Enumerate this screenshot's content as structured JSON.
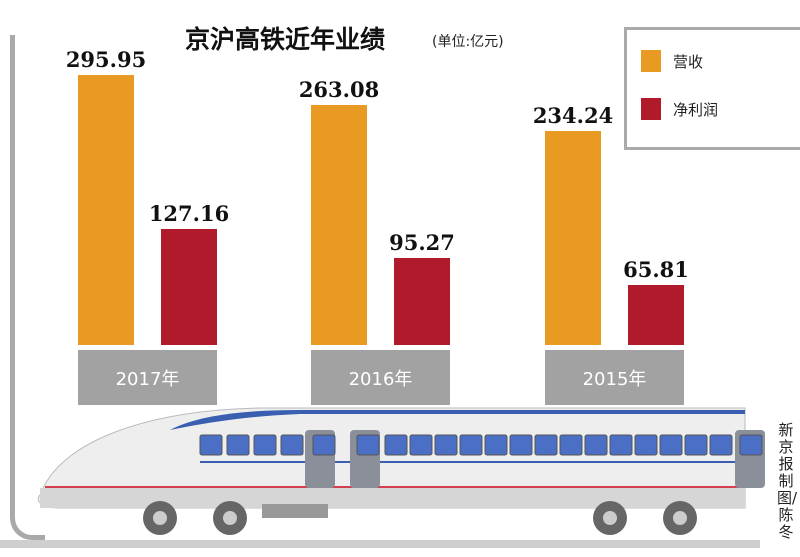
{
  "chart_data": {
    "type": "bar",
    "title": "京沪高铁近年业绩",
    "subtitle": "(单位:亿元)",
    "categories": [
      "2017年",
      "2016年",
      "2015年"
    ],
    "series": [
      {
        "name": "营收",
        "color": "#e89a22",
        "values": [
          295.95,
          263.08,
          234.24
        ]
      },
      {
        "name": "净利润",
        "color": "#b11a2a",
        "values": [
          127.16,
          95.27,
          65.81
        ]
      }
    ],
    "value_labels": [
      [
        "295.95",
        "263.08",
        "234.24"
      ],
      [
        "127.16",
        "95.27",
        "65.81"
      ]
    ],
    "legend": "top-right",
    "grid": false
  },
  "credit": "新京报制图/陈冬"
}
